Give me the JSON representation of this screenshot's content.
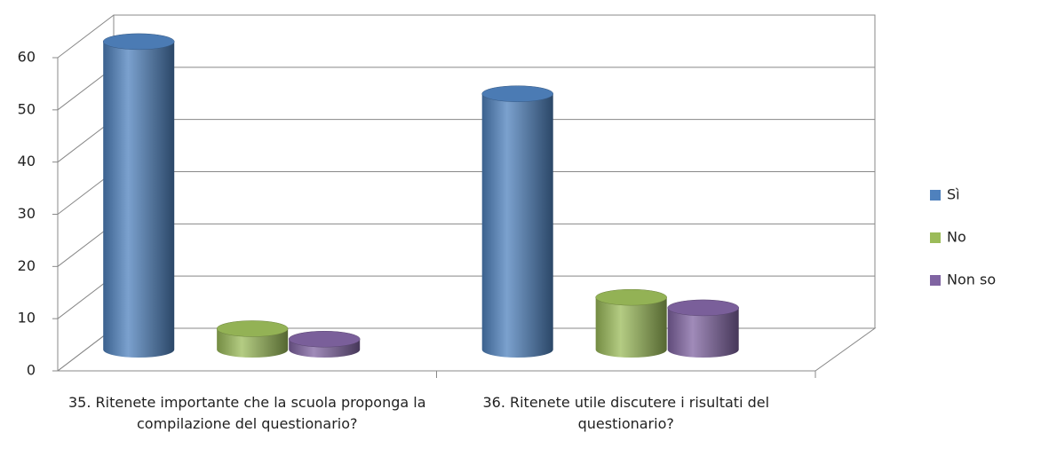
{
  "chart_data": {
    "type": "bar3d",
    "categories": [
      "35. Ritenete importante che la scuola proponga la compilazione del questionario?",
      "36. Ritenete utile discutere i risultati del questionario?"
    ],
    "series": [
      {
        "name": "Sì",
        "color": "#4f81bd",
        "values": [
          59,
          49
        ]
      },
      {
        "name": "No",
        "color": "#9bbb59",
        "values": [
          4,
          10
        ]
      },
      {
        "name": "Non so",
        "color": "#8064a2",
        "values": [
          2,
          8
        ]
      }
    ],
    "ylim": [
      0,
      60
    ],
    "yticks": [
      0,
      10,
      20,
      30,
      40,
      50,
      60
    ],
    "grid": true,
    "legend": "right"
  }
}
